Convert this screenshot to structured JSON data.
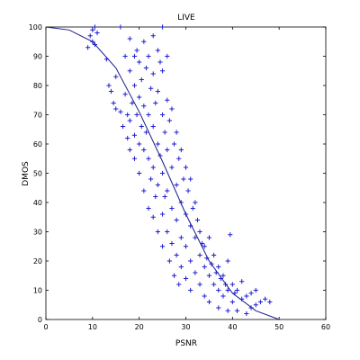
{
  "chart_data": {
    "type": "scatter",
    "title": "LIVE",
    "xlabel": "PSNR",
    "ylabel": "DMOS",
    "xlim": [
      0,
      60
    ],
    "ylim": [
      0,
      100
    ],
    "xticks": [
      "0",
      "10",
      "20",
      "30",
      "40",
      "50",
      "60"
    ],
    "yticks": [
      "0",
      "10",
      "20",
      "30",
      "40",
      "50",
      "60",
      "70",
      "80",
      "90",
      "100"
    ],
    "grid": false,
    "legend": "none",
    "marker": "+",
    "marker_color": "#1f1fcf",
    "fit_color": "#1a1a8c",
    "series": [
      {
        "values": [
          [
            9,
            93
          ],
          [
            9.5,
            97
          ],
          [
            10,
            95
          ],
          [
            10,
            99
          ],
          [
            10.5,
            100
          ],
          [
            10.5,
            94
          ],
          [
            11,
            98
          ],
          [
            13,
            89
          ],
          [
            13.5,
            80
          ],
          [
            14,
            78
          ],
          [
            14.5,
            74
          ],
          [
            15,
            83
          ],
          [
            15,
            72
          ],
          [
            16,
            100
          ],
          [
            16,
            71
          ],
          [
            16.5,
            66
          ],
          [
            17,
            90
          ],
          [
            17,
            77
          ],
          [
            17.5,
            70
          ],
          [
            17.5,
            62
          ],
          [
            18,
            96
          ],
          [
            18,
            85
          ],
          [
            18,
            68
          ],
          [
            18,
            58
          ],
          [
            18.5,
            74
          ],
          [
            19,
            90
          ],
          [
            19,
            80
          ],
          [
            19,
            63
          ],
          [
            19,
            55
          ],
          [
            19.5,
            92
          ],
          [
            19.5,
            70
          ],
          [
            20,
            88
          ],
          [
            20,
            76
          ],
          [
            20,
            60
          ],
          [
            20,
            50
          ],
          [
            20.5,
            82
          ],
          [
            20.5,
            66
          ],
          [
            21,
            95
          ],
          [
            21,
            73
          ],
          [
            21,
            58
          ],
          [
            21,
            44
          ],
          [
            21.5,
            86
          ],
          [
            21.5,
            64
          ],
          [
            22,
            90
          ],
          [
            22,
            70
          ],
          [
            22,
            55
          ],
          [
            22,
            38
          ],
          [
            22.5,
            79
          ],
          [
            22.5,
            48
          ],
          [
            23,
            97
          ],
          [
            23,
            84
          ],
          [
            23,
            66
          ],
          [
            23,
            52
          ],
          [
            23,
            35
          ],
          [
            23.5,
            74
          ],
          [
            23.5,
            42
          ],
          [
            24,
            92
          ],
          [
            24,
            78
          ],
          [
            24,
            60
          ],
          [
            24,
            46
          ],
          [
            24,
            30
          ],
          [
            24.5,
            88
          ],
          [
            24.5,
            56
          ],
          [
            25,
            100
          ],
          [
            25,
            85
          ],
          [
            25,
            70
          ],
          [
            25,
            50
          ],
          [
            25,
            36
          ],
          [
            25,
            25
          ],
          [
            25.5,
            64
          ],
          [
            25.5,
            42
          ],
          [
            26,
            90
          ],
          [
            26,
            75
          ],
          [
            26,
            58
          ],
          [
            26,
            44
          ],
          [
            26,
            30
          ],
          [
            26.5,
            68
          ],
          [
            26.5,
            20
          ],
          [
            27,
            72
          ],
          [
            27,
            52
          ],
          [
            27,
            38
          ],
          [
            27,
            26
          ],
          [
            27.5,
            60
          ],
          [
            27.5,
            15
          ],
          [
            28,
            64
          ],
          [
            28,
            46
          ],
          [
            28,
            34
          ],
          [
            28,
            22
          ],
          [
            28.5,
            55
          ],
          [
            28.5,
            12
          ],
          [
            29,
            58
          ],
          [
            29,
            40
          ],
          [
            29,
            28
          ],
          [
            29,
            18
          ],
          [
            29.5,
            48
          ],
          [
            30,
            52
          ],
          [
            30,
            36
          ],
          [
            30,
            25
          ],
          [
            30,
            14
          ],
          [
            30.5,
            44
          ],
          [
            31,
            48
          ],
          [
            31,
            32
          ],
          [
            31,
            20
          ],
          [
            31,
            10
          ],
          [
            31.5,
            38
          ],
          [
            32,
            40
          ],
          [
            32,
            28
          ],
          [
            32,
            16
          ],
          [
            32.5,
            34
          ],
          [
            33,
            30
          ],
          [
            33,
            22
          ],
          [
            33,
            12
          ],
          [
            33.5,
            26
          ],
          [
            34,
            25
          ],
          [
            34,
            18
          ],
          [
            34,
            8
          ],
          [
            34.5,
            21
          ],
          [
            35,
            28
          ],
          [
            35,
            15
          ],
          [
            35,
            6
          ],
          [
            35.5,
            19
          ],
          [
            36,
            22
          ],
          [
            36,
            12
          ],
          [
            36.5,
            16
          ],
          [
            37,
            18
          ],
          [
            37,
            10
          ],
          [
            37,
            4
          ],
          [
            37.5,
            14
          ],
          [
            38,
            15
          ],
          [
            38,
            8
          ],
          [
            38.5,
            12
          ],
          [
            39,
            20
          ],
          [
            39,
            10
          ],
          [
            39,
            3
          ],
          [
            39.5,
            29
          ],
          [
            40,
            12
          ],
          [
            40,
            6
          ],
          [
            40.5,
            9
          ],
          [
            41,
            10
          ],
          [
            41,
            3
          ],
          [
            42,
            13
          ],
          [
            42,
            7
          ],
          [
            43,
            8
          ],
          [
            43,
            2
          ],
          [
            44,
            9
          ],
          [
            44,
            4
          ],
          [
            45,
            10
          ],
          [
            45,
            5
          ],
          [
            46,
            6
          ],
          [
            47,
            7
          ],
          [
            48,
            6
          ]
        ]
      }
    ],
    "fit_curve": [
      [
        0,
        100
      ],
      [
        5,
        99
      ],
      [
        10,
        95
      ],
      [
        15,
        86
      ],
      [
        20,
        71
      ],
      [
        25,
        54
      ],
      [
        30,
        36
      ],
      [
        35,
        20
      ],
      [
        40,
        9
      ],
      [
        45,
        3
      ],
      [
        50,
        0
      ]
    ]
  }
}
